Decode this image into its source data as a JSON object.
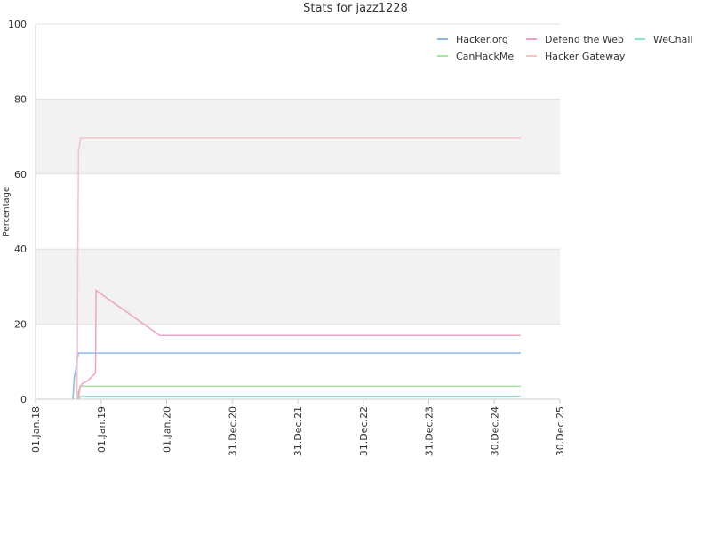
{
  "chart_data": {
    "type": "line",
    "title": "Stats for jazz1228",
    "y_label": "Percentage",
    "xlim": [
      "2018-01-01",
      "2025-12-30"
    ],
    "xticks": [
      {
        "value": "2018-01-01",
        "label": "01.Jan.18"
      },
      {
        "value": "2019-01-01",
        "label": "01.Jan.19"
      },
      {
        "value": "2020-01-01",
        "label": "01.Jan.20"
      },
      {
        "value": "2020-12-31",
        "label": "31.Dec.20"
      },
      {
        "value": "2021-12-31",
        "label": "31.Dec.21"
      },
      {
        "value": "2022-12-31",
        "label": "31.Dec.22"
      },
      {
        "value": "2023-12-31",
        "label": "31.Dec.23"
      },
      {
        "value": "2024-12-30",
        "label": "30.Dec.24"
      },
      {
        "value": "2025-12-30",
        "label": "30.Dec.25"
      }
    ],
    "ylim": [
      0,
      100
    ],
    "yticks": [
      0,
      20,
      40,
      60,
      80,
      100
    ],
    "grid": true,
    "bands": [
      [
        20,
        40
      ],
      [
        60,
        80
      ]
    ],
    "legend": "top-right",
    "series": [
      {
        "name": "Hacker.org",
        "color": "#8db6ec",
        "x": [
          "2018-07-28",
          "2018-08-05",
          "2018-08-15",
          "2018-08-28",
          "2025-05-26"
        ],
        "values": [
          0,
          6,
          8.5,
          12.3,
          12.3
        ]
      },
      {
        "name": "CanHackMe",
        "color": "#a6e6a0",
        "x": [
          "2018-08-20",
          "2018-09-05",
          "2025-05-26"
        ],
        "values": [
          0,
          3.5,
          3.5
        ]
      },
      {
        "name": "Defend the Web",
        "color": "#eda3c8",
        "x": [
          "2018-08-28",
          "2018-09-05",
          "2018-09-15",
          "2018-10-20",
          "2018-12-01",
          "2018-12-04",
          "2019-11-24",
          "2025-05-26"
        ],
        "values": [
          0,
          3,
          4,
          5,
          7,
          29,
          17,
          17
        ]
      },
      {
        "name": "Hacker Gateway",
        "color": "#f6c1c7",
        "x": [
          "2018-08-20",
          "2018-08-28",
          "2018-09-10",
          "2025-05-26"
        ],
        "values": [
          0,
          66,
          69.7,
          69.7
        ]
      },
      {
        "name": "WeChall",
        "color": "#94e2d2",
        "x": [
          "2018-08-28",
          "2018-09-10",
          "2025-05-26"
        ],
        "values": [
          0,
          0.8,
          0.8
        ]
      }
    ]
  }
}
